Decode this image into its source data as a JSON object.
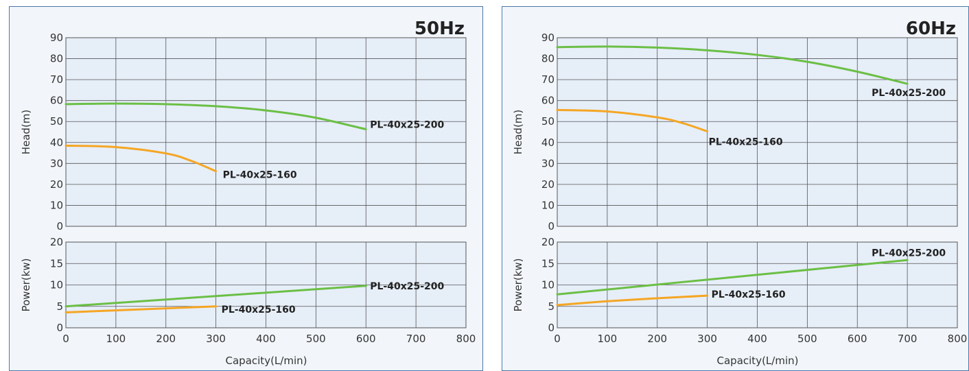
{
  "colors": {
    "plot_bg": "#e6eef8",
    "grid": "#555555",
    "series_200": "#6bbf45",
    "series_160": "#f5a623",
    "panel_border": "#4a78a8"
  },
  "chart_data": [
    {
      "type": "line",
      "title": "50Hz",
      "xlabel": "Capacity(L/min)",
      "xlim": [
        0,
        800
      ],
      "x_ticks": [
        "0",
        "100",
        "200",
        "300",
        "400",
        "500",
        "600",
        "700",
        "800"
      ],
      "grid": true,
      "head": {
        "ylabel": "Head(m)",
        "ylim": [
          0,
          90
        ],
        "y_ticks": [
          "0",
          "10",
          "20",
          "30",
          "40",
          "50",
          "60",
          "70",
          "80",
          "90"
        ],
        "series": [
          {
            "name": "PL-40x25-200",
            "color": "#6bbf45",
            "x": [
              0,
              100,
              200,
              300,
              400,
              500,
              600
            ],
            "y": [
              58.3,
              58.6,
              58.3,
              57.3,
              55.3,
              51.8,
              46.3
            ]
          },
          {
            "name": "PL-40x25-160",
            "color": "#f5a623",
            "x": [
              0,
              100,
              200,
              250,
              300
            ],
            "y": [
              38.5,
              37.8,
              34.8,
              31.3,
              26.3
            ]
          }
        ]
      },
      "power": {
        "ylabel": "Power(kw)",
        "ylim": [
          0,
          20
        ],
        "y_ticks": [
          "0",
          "5",
          "10",
          "15",
          "20"
        ],
        "series": [
          {
            "name": "PL-40x25-200",
            "color": "#6bbf45",
            "x": [
              0,
              600
            ],
            "y": [
              5.0,
              9.8
            ]
          },
          {
            "name": "PL-40x25-160",
            "color": "#f5a623",
            "x": [
              0,
              300
            ],
            "y": [
              3.6,
              5.0
            ]
          }
        ]
      }
    },
    {
      "type": "line",
      "title": "60Hz",
      "xlabel": "Capacity(L/min)",
      "xlim": [
        0,
        800
      ],
      "x_ticks": [
        "0",
        "100",
        "200",
        "300",
        "400",
        "500",
        "600",
        "700",
        "800"
      ],
      "grid": true,
      "head": {
        "ylabel": "Head(m)",
        "ylim": [
          0,
          90
        ],
        "y_ticks": [
          "0",
          "10",
          "20",
          "30",
          "40",
          "50",
          "60",
          "70",
          "80",
          "90"
        ],
        "series": [
          {
            "name": "PL-40x25-200",
            "color": "#6bbf45",
            "x": [
              0,
              100,
              200,
              300,
              400,
              500,
              600,
              700
            ],
            "y": [
              85.5,
              85.8,
              85.3,
              84.0,
              81.8,
              78.5,
              73.8,
              68.0
            ]
          },
          {
            "name": "PL-40x25-160",
            "color": "#f5a623",
            "x": [
              0,
              100,
              200,
              250,
              300
            ],
            "y": [
              55.5,
              54.8,
              52.0,
              49.3,
              45.3
            ]
          }
        ]
      },
      "power": {
        "ylabel": "Power(kw)",
        "ylim": [
          0,
          20
        ],
        "y_ticks": [
          "0",
          "5",
          "10",
          "15",
          "20"
        ],
        "series": [
          {
            "name": "PL-40x25-200",
            "color": "#6bbf45",
            "x": [
              0,
              700
            ],
            "y": [
              7.8,
              15.8
            ]
          },
          {
            "name": "PL-40x25-160",
            "color": "#f5a623",
            "x": [
              0,
              100,
              200,
              300
            ],
            "y": [
              5.3,
              6.2,
              6.9,
              7.5
            ]
          }
        ]
      }
    }
  ]
}
